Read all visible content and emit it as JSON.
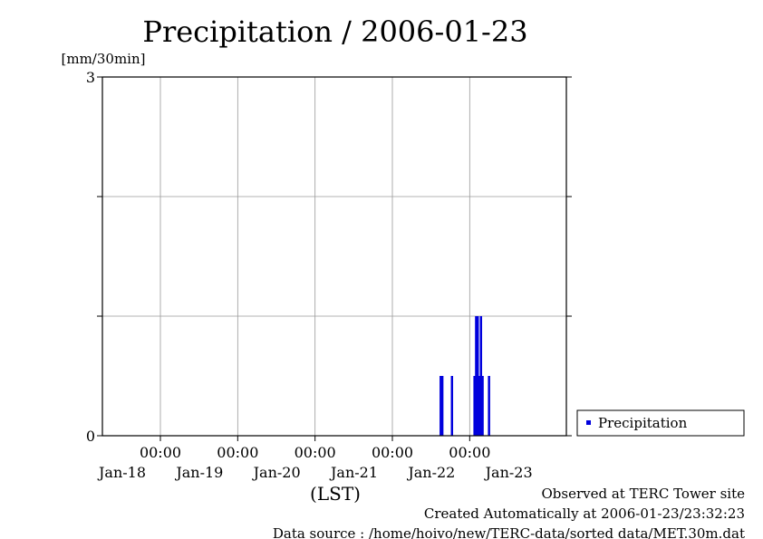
{
  "chart_data": {
    "type": "bar",
    "title": "Precipitation / 2006-01-23",
    "ylabel": "[mm/30min]",
    "xlabel": "(LST)",
    "ylim": [
      0,
      3
    ],
    "yticks": [
      {
        "value": 0,
        "label": "0"
      },
      {
        "value": 3,
        "label": "3"
      }
    ],
    "ygrid": [
      0,
      1,
      2,
      3
    ],
    "xlim": [
      "2006-01-17 06:00",
      "2006-01-23 06:00"
    ],
    "xticks": [
      {
        "value": "2006-01-18 00:00",
        "time": "00:00"
      },
      {
        "value": "2006-01-19 00:00",
        "time": "00:00"
      },
      {
        "value": "2006-01-20 00:00",
        "time": "00:00"
      },
      {
        "value": "2006-01-21 00:00",
        "time": "00:00"
      },
      {
        "value": "2006-01-22 00:00",
        "time": "00:00"
      }
    ],
    "date_labels": [
      {
        "value": "2006-01-18 00:00",
        "label": "Jan-18"
      },
      {
        "value": "2006-01-19 00:00",
        "label": "Jan-19"
      },
      {
        "value": "2006-01-20 00:00",
        "label": "Jan-20"
      },
      {
        "value": "2006-01-21 00:00",
        "label": "Jan-21"
      },
      {
        "value": "2006-01-22 00:00",
        "label": "Jan-22"
      },
      {
        "value": "2006-01-23 00:00",
        "label": "Jan-23"
      }
    ],
    "grid": true,
    "legend": {
      "position": "right",
      "entries": [
        "Precipitation"
      ]
    },
    "series": [
      {
        "name": "Precipitation",
        "color": "#0000dd",
        "x": [
          "2006-01-21 15:00",
          "2006-01-21 15:30",
          "2006-01-21 18:30",
          "2006-01-22 01:30",
          "2006-01-22 02:00",
          "2006-01-22 02:30",
          "2006-01-22 03:00",
          "2006-01-22 03:30",
          "2006-01-22 04:00",
          "2006-01-22 06:00"
        ],
        "values": [
          0.5,
          0.5,
          0.5,
          0.5,
          1,
          1,
          0.5,
          1,
          0.5,
          0.5
        ]
      }
    ]
  },
  "notes": {
    "observed": "Observed at TERC Tower site",
    "created": "Created Automatically at 2006-01-23/23:32:23",
    "source": "Data source : /home/hoivo/new/TERC-data/sorted  data/MET.30m.dat"
  }
}
